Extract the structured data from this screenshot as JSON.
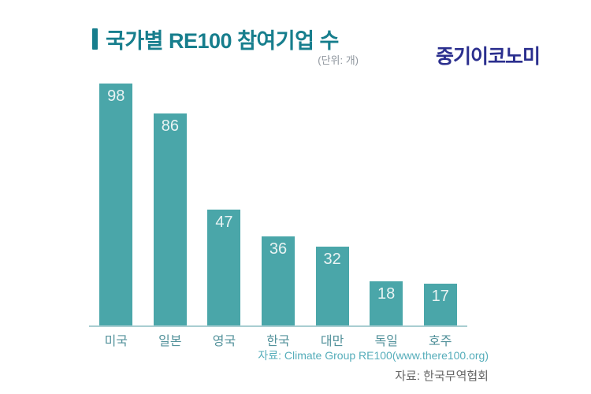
{
  "header": {
    "title": "국가별 RE100 참여기업 수",
    "unit_label": "(단위: 개)",
    "logo_text": "중기이코노미"
  },
  "chart_data": {
    "type": "bar",
    "title": "국가별 RE100 참여기업 수",
    "subtitle_unit": "(단위: 개)",
    "categories": [
      "미국",
      "일본",
      "영국",
      "한국",
      "대만",
      "독일",
      "호주"
    ],
    "values": [
      98,
      86,
      47,
      36,
      32,
      18,
      17
    ],
    "ylim": [
      0,
      98
    ],
    "grid": false,
    "value_label_position": "inside-top",
    "xlabel": "",
    "ylabel": "",
    "colors": {
      "bar_fill": "#4aa6a9",
      "value_label": "#e9f3f3",
      "category_label": "#53929b",
      "axis_line": "#a9cdd1"
    }
  },
  "footer": {
    "source_primary": "자료: Climate Group RE100(www.there100.org)",
    "source_secondary": "자료: 한국무역협회"
  },
  "colors": {
    "title_accent": "#177e8d",
    "title_text": "#177e8d",
    "unit_text": "#8f969e",
    "logo_text": "#2b2f8e",
    "source_primary_text": "#55adba",
    "source_secondary_text": "#666666",
    "background": "#ffffff"
  }
}
